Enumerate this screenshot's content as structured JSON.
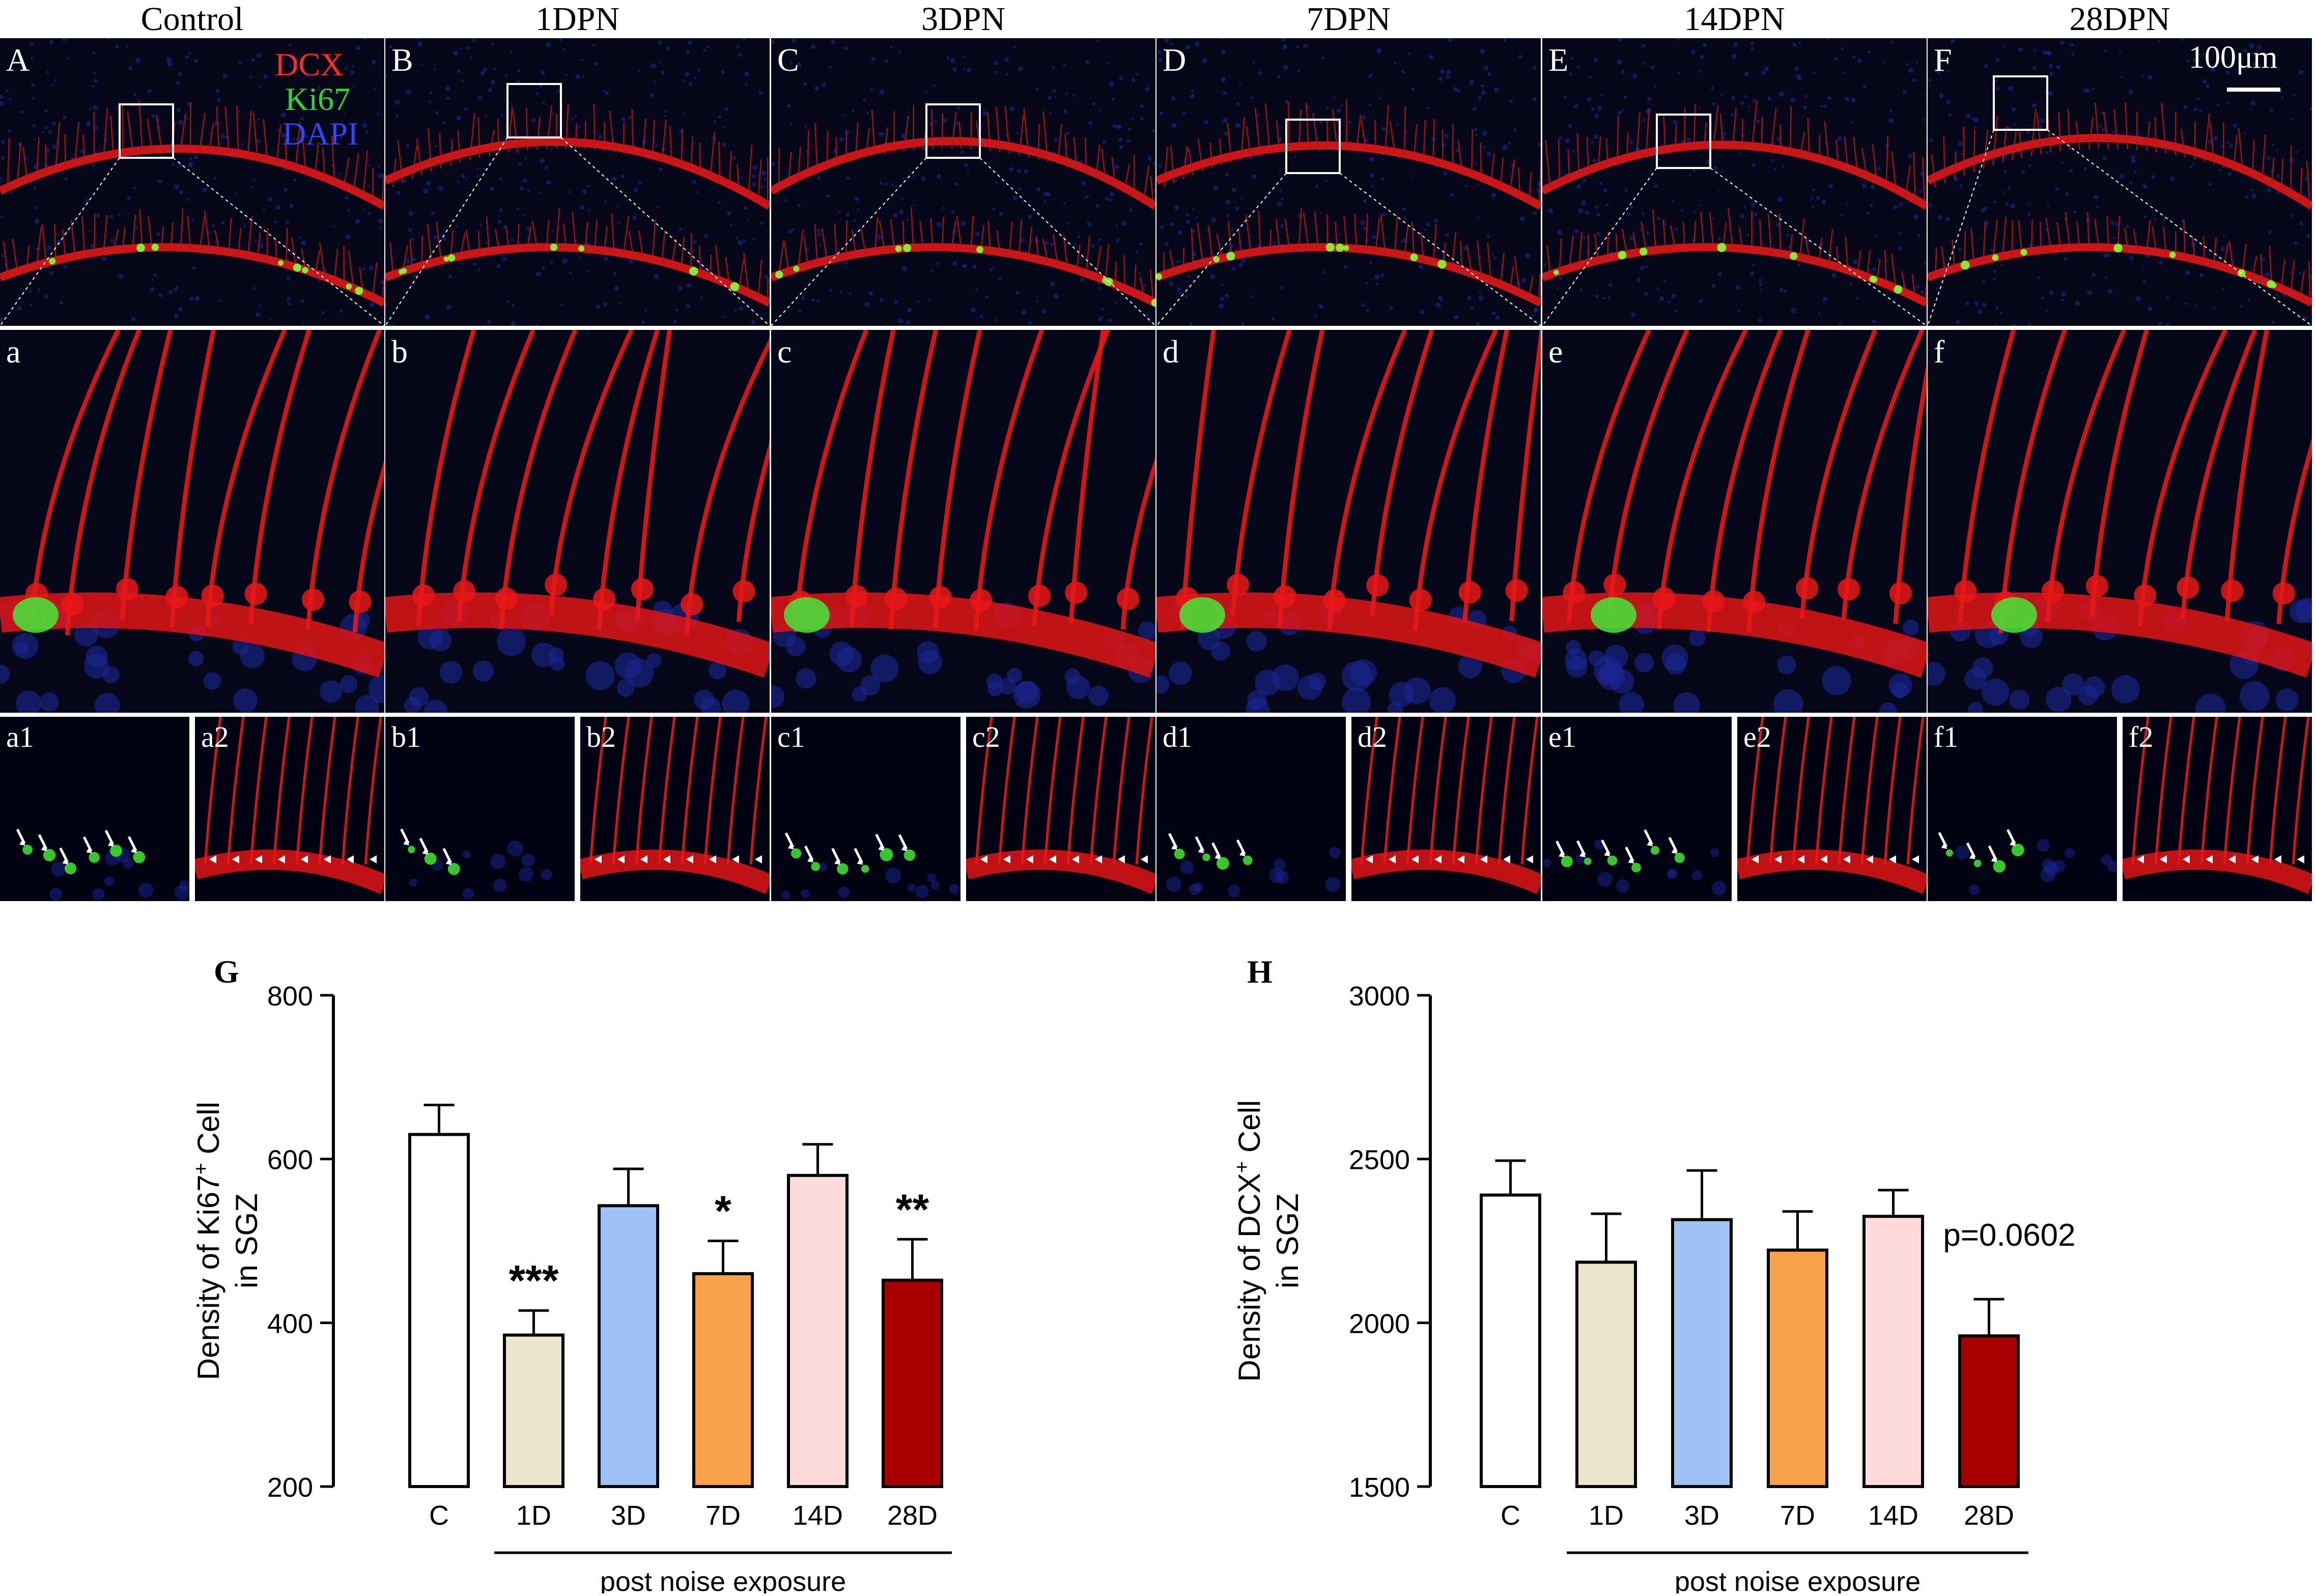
{
  "column_titles": [
    "Control",
    "1DPN",
    "3DPN",
    "7DPN",
    "14DPN",
    "28DPN"
  ],
  "top_labels": [
    "A",
    "B",
    "C",
    "D",
    "E",
    "F"
  ],
  "mid_labels": [
    "a",
    "b",
    "c",
    "d",
    "e",
    "f"
  ],
  "bottom_labels": [
    "a1",
    "a2",
    "b1",
    "b2",
    "c1",
    "c2",
    "d1",
    "d2",
    "e1",
    "e2",
    "f1",
    "f2"
  ],
  "legend": [
    {
      "label": "DCX",
      "color": "#ff2a2a"
    },
    {
      "label": "Ki67",
      "color": "#22dd22"
    },
    {
      "label": "DAPI",
      "color": "#3344ff"
    }
  ],
  "scale_bar_label": "100μm",
  "chart_data": [
    {
      "type": "bar",
      "panel_label": "G",
      "categories": [
        "C",
        "1D",
        "3D",
        "7D",
        "14D",
        "28D"
      ],
      "values": [
        630,
        385,
        543,
        460,
        580,
        452
      ],
      "errors": [
        36,
        30,
        45,
        40,
        38,
        50
      ],
      "significance": [
        "",
        "***",
        "",
        "*",
        "",
        "**"
      ],
      "colors": [
        "#ffffff",
        "#ebe5cb",
        "#9ec2f5",
        "#f7a24b",
        "#fddbdb",
        "#a80000"
      ],
      "ylabel_line1": "Density of Ki67",
      "ylabel_sup": "+",
      "ylabel_line1b": " Cell",
      "ylabel_line2": "in SGZ",
      "xlabel": "post noise exposure",
      "ylim": [
        200,
        800
      ],
      "yticks": [
        "200",
        "400",
        "600",
        "800"
      ]
    },
    {
      "type": "bar",
      "panel_label": "H",
      "categories": [
        "C",
        "1D",
        "3D",
        "7D",
        "14D",
        "28D"
      ],
      "values": [
        2390,
        2185,
        2315,
        2222,
        2325,
        1960
      ],
      "errors": [
        105,
        148,
        150,
        118,
        80,
        112
      ],
      "significance": [
        "",
        "",
        "",
        "",
        "",
        ""
      ],
      "annotation": "p=0.0602",
      "colors": [
        "#ffffff",
        "#ebe5cb",
        "#9ec2f5",
        "#f7a24b",
        "#fddbdb",
        "#a80000"
      ],
      "ylabel_line1": "Density of DCX",
      "ylabel_sup": "+",
      "ylabel_line1b": " Cell",
      "ylabel_line2": "in SGZ",
      "xlabel": "post noise exposure",
      "ylim": [
        1500,
        3000
      ],
      "yticks": [
        "1500",
        "2000",
        "2500",
        "3000"
      ]
    }
  ]
}
